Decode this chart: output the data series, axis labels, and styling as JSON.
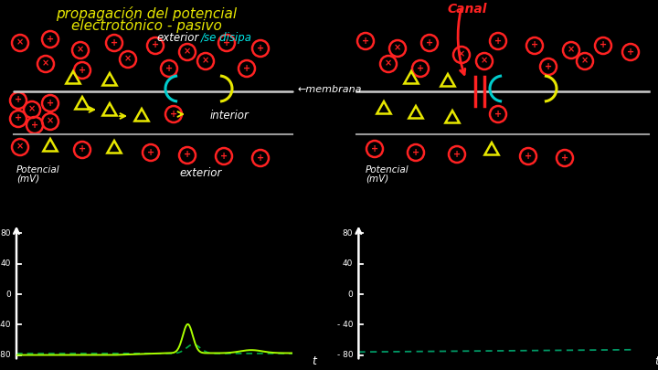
{
  "bg": "#000000",
  "title1": "propagación del potencial",
  "title2": "electrotónico - pasivo",
  "title_color": "#e8e800",
  "exterior_text": "exterior",
  "exterior_color": "#ffffff",
  "se_disipa": "/se disipa",
  "se_disipa_color": "#00e8e8",
  "canal_text": "Canal",
  "canal_color": "#ff2222",
  "membrana_text": "←membrana",
  "membrana_color": "#ffffff",
  "interior_text": "interior",
  "interior_color": "#ffffff",
  "exterior2_text": "exterior",
  "exterior2_color": "#ffffff",
  "circle_color": "#ff2222",
  "tri_color": "#e8e800",
  "cyan_color": "#00cccc",
  "yellow_color": "#e8e800",
  "white": "#ffffff",
  "graph_line1_color": "#aaff00",
  "graph_line2_color": "#00aa44",
  "graph_line_r_color": "#009966",
  "yticks": [
    -80,
    -40,
    0,
    40,
    80
  ]
}
